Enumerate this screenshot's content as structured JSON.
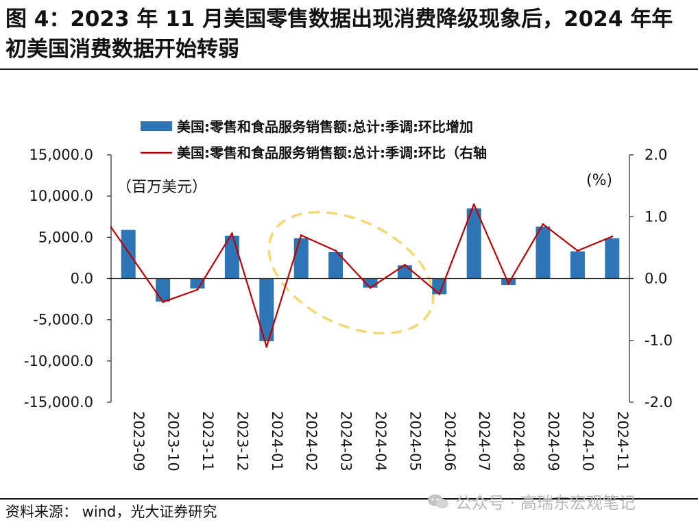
{
  "figure_title": "图 4：2023 年 11 月美国零售数据出现消费降级现象后，2024 年年初美国消费数据开始转弱",
  "source": "资料来源： wind，光大证券研究",
  "watermark": "公众号 · 高瑞东宏观笔记",
  "chart_data": {
    "type": "bar+line",
    "categories": [
      "2023-09",
      "2023-10",
      "2023-11",
      "2023-12",
      "2024-01",
      "2024-02",
      "2024-03",
      "2024-04",
      "2024-05",
      "2024-06",
      "2024-07",
      "2024-08",
      "2024-09",
      "2024-10",
      "2024-11"
    ],
    "series": [
      {
        "name": "美国:零售和食品服务销售额:总计:季调:环比增加",
        "type": "bar",
        "axis": "left",
        "color": "#2e75b6",
        "values": [
          5900,
          -2800,
          -1200,
          5200,
          -7600,
          4900,
          3200,
          -1100,
          1600,
          -1900,
          8500,
          -800,
          6300,
          3300,
          4900
        ]
      },
      {
        "name": "美国:零售和食品服务销售额:总计:季调:环比（右轴",
        "type": "line",
        "axis": "right",
        "color": "#c00000",
        "values": [
          0.83,
          -0.38,
          -0.18,
          0.73,
          -1.1,
          0.7,
          0.45,
          -0.15,
          0.22,
          -0.25,
          1.2,
          -0.08,
          0.88,
          0.45,
          0.68
        ]
      }
    ],
    "left_axis": {
      "unit_label": "（百万美元）",
      "ylim": [
        -15000,
        15000
      ],
      "ticks": [
        "15,000.0",
        "10,000.0",
        "5,000.0",
        "0.0",
        "-5,000.0",
        "-10,000.0",
        "-15,000.0"
      ]
    },
    "right_axis": {
      "unit_label": "(%)",
      "ylim": [
        -2.0,
        2.0
      ],
      "ticks": [
        "2.0",
        "1.0",
        "0.0",
        "-1.0",
        "-2.0"
      ]
    },
    "legend": "top-center",
    "annotation": "dashed yellow ellipse highlighting 2024-02 to 2024-06",
    "annotation_color": "#f5d76e"
  }
}
